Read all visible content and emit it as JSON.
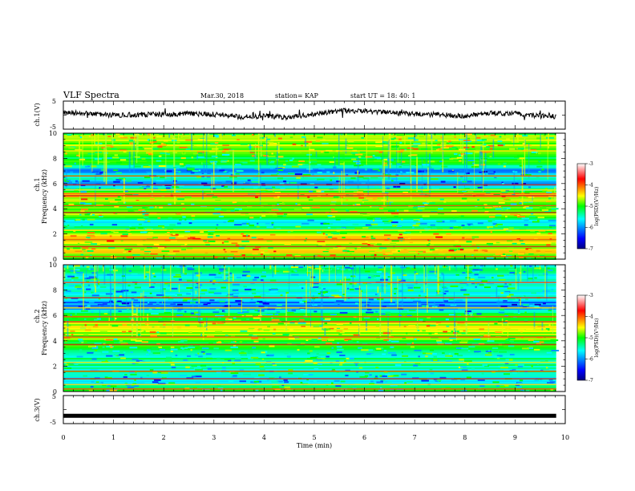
{
  "header": {
    "title": "VLF Spectra",
    "date": "Mar.30, 2018",
    "station": "station= KAP",
    "start": "start UT = 18: 40: 1"
  },
  "chart_data": [
    {
      "type": "line",
      "name": "ch1-waveform",
      "ylabel": "ch.1(V)",
      "ylim": [
        -5,
        5
      ],
      "yticks": [
        "5",
        "-5"
      ],
      "xlim": [
        0,
        10
      ],
      "trace_range": [
        0,
        9.82
      ],
      "profile_x": [
        0,
        0.5,
        1.0,
        1.5,
        2.0,
        2.5,
        3.0,
        3.5,
        4.0,
        4.5,
        5.0,
        5.5,
        6.0,
        6.5,
        7.0,
        7.5,
        8.0,
        8.5,
        9.0,
        9.5,
        9.82
      ],
      "profile_y": [
        0.8,
        0.6,
        0.0,
        0.2,
        0.3,
        0.5,
        0.4,
        -0.6,
        -0.3,
        -0.8,
        0.4,
        1.6,
        1.4,
        0.8,
        0.4,
        0.2,
        -0.3,
        0.8,
        0.5,
        -0.3,
        -0.5
      ],
      "color": "#000000"
    },
    {
      "type": "heatmap",
      "name": "ch1-spectrogram",
      "ylabel": "ch.1 Frequency (kHz)",
      "yticks": [
        "0",
        "2",
        "4",
        "6",
        "8",
        "10"
      ],
      "ylim": [
        0,
        10
      ],
      "xlim": [
        0,
        10
      ],
      "data_range": [
        0,
        9.82
      ],
      "profile_freq_khz": [
        0,
        0.5,
        1.0,
        1.5,
        2.0,
        2.5,
        3.0,
        3.5,
        4.0,
        4.5,
        5.0,
        5.5,
        6.0,
        6.5,
        7.0,
        7.5,
        8.0,
        8.5,
        9.0,
        9.5,
        10.0
      ],
      "profile_log_psd": [
        -5.0,
        -4.4,
        -4.6,
        -4.5,
        -4.6,
        -5.3,
        -5.6,
        -4.7,
        -4.9,
        -5.1,
        -4.3,
        -5.3,
        -6.2,
        -5.3,
        -6.1,
        -5.0,
        -5.1,
        -4.8,
        -4.7,
        -4.8,
        -4.9
      ],
      "lines_khz": [
        0.2,
        0.5,
        1.0,
        1.55,
        2.3,
        3.7,
        4.25,
        4.6,
        5.05,
        5.2,
        5.5,
        5.9,
        6.6,
        8.6
      ],
      "colorbar": {
        "label": "log(PSD)(V²/Hz)",
        "range": [
          -7,
          -3
        ],
        "ticks": [
          "-3",
          "-4",
          "-5",
          "-6",
          "-7"
        ]
      }
    },
    {
      "type": "heatmap",
      "name": "ch2-spectrogram",
      "ylabel": "ch.2 Frequency (kHz)",
      "yticks": [
        "0",
        "2",
        "4",
        "6",
        "8",
        "10"
      ],
      "ylim": [
        0,
        10
      ],
      "xlim": [
        0,
        10
      ],
      "data_range": [
        0,
        9.82
      ],
      "profile_freq_khz": [
        0,
        0.5,
        1.0,
        1.5,
        2.0,
        2.5,
        3.0,
        3.5,
        4.0,
        4.5,
        5.0,
        5.5,
        6.0,
        6.5,
        7.0,
        7.5,
        8.0,
        8.5,
        9.0,
        9.5,
        10.0
      ],
      "profile_log_psd": [
        -5.0,
        -5.5,
        -5.7,
        -5.4,
        -5.3,
        -5.3,
        -5.5,
        -5.1,
        -4.9,
        -4.8,
        -4.6,
        -4.8,
        -5.1,
        -5.9,
        -6.1,
        -5.3,
        -5.6,
        -5.5,
        -5.5,
        -5.4,
        -5.4
      ],
      "lines_khz": [
        0.2,
        0.55,
        1.0,
        1.6,
        2.3,
        3.7,
        4.3,
        5.05,
        5.5,
        5.9,
        6.6,
        7.4,
        8.6
      ],
      "colorbar": {
        "label": "log(PSD)(V²/Hz)",
        "range": [
          -7,
          -3
        ],
        "ticks": [
          "-3",
          "-4",
          "-5",
          "-6",
          "-7"
        ]
      }
    },
    {
      "type": "line",
      "name": "ch3-waveform",
      "ylabel": "ch.3(V)",
      "ylim": [
        -5,
        5
      ],
      "yticks": [
        "5",
        "-5"
      ],
      "xlim": [
        0,
        10
      ],
      "xlabel": "Time (min)",
      "xticks": [
        "0",
        "1",
        "2",
        "3",
        "4",
        "5",
        "6",
        "7",
        "8",
        "9",
        "10"
      ],
      "trace_range": [
        0,
        9.82
      ],
      "profile_x": [
        0,
        9.82
      ],
      "profile_y": [
        -2.2,
        -2.2
      ],
      "color": "#000000"
    }
  ]
}
